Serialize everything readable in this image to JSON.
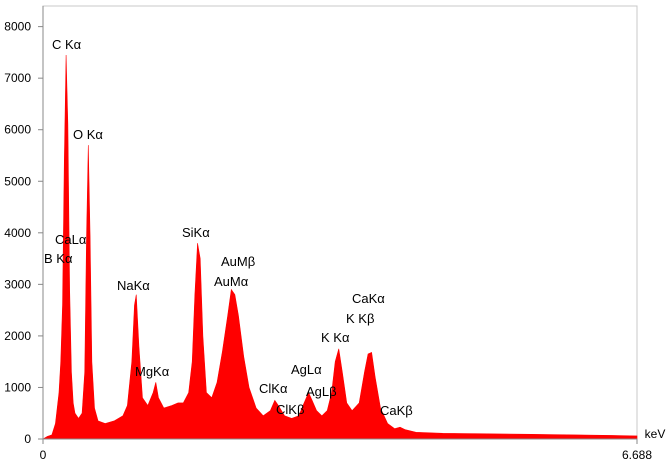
{
  "chart_data": {
    "type": "area",
    "color": "#ff0000",
    "x_unit": "keV",
    "xlim": [
      0,
      6.688
    ],
    "xticks": [
      0,
      6.688
    ],
    "ylim": [
      0,
      8400
    ],
    "yticks": [
      0,
      1000,
      2000,
      3000,
      4000,
      5000,
      6000,
      7000,
      8000
    ],
    "annotations": [
      "C Kα",
      "O Kα",
      "CaLα",
      "B Kα",
      "NaKα",
      "MgKα",
      "SiKα",
      "AuMβ",
      "AuMα",
      "ClKα",
      "ClKβ",
      "AgLα",
      "AgLβ",
      "K Kα",
      "CaKα",
      "K Kβ",
      "CaKβ"
    ],
    "x": [
      0.0,
      0.05,
      0.1,
      0.14,
      0.18,
      0.2,
      0.22,
      0.24,
      0.26,
      0.28,
      0.3,
      0.32,
      0.34,
      0.36,
      0.4,
      0.44,
      0.47,
      0.49,
      0.51,
      0.53,
      0.55,
      0.58,
      0.62,
      0.7,
      0.8,
      0.9,
      0.95,
      1.0,
      1.03,
      1.05,
      1.08,
      1.12,
      1.18,
      1.24,
      1.27,
      1.3,
      1.36,
      1.45,
      1.52,
      1.58,
      1.64,
      1.68,
      1.71,
      1.74,
      1.77,
      1.8,
      1.84,
      1.9,
      1.96,
      2.02,
      2.08,
      2.12,
      2.16,
      2.2,
      2.26,
      2.32,
      2.4,
      2.48,
      2.56,
      2.61,
      2.65,
      2.72,
      2.8,
      2.88,
      2.94,
      2.99,
      3.03,
      3.08,
      3.14,
      3.2,
      3.25,
      3.29,
      3.33,
      3.37,
      3.42,
      3.48,
      3.56,
      3.62,
      3.66,
      3.7,
      3.74,
      3.8,
      3.88,
      3.96,
      4.02,
      4.08,
      4.2,
      4.5,
      5.0,
      5.5,
      6.0,
      6.4,
      6.688
    ],
    "values": [
      0,
      50,
      80,
      300,
      900,
      1500,
      2600,
      5400,
      7450,
      6100,
      2900,
      1300,
      700,
      500,
      400,
      500,
      1300,
      3900,
      5700,
      3950,
      1500,
      600,
      350,
      300,
      350,
      450,
      650,
      1500,
      2600,
      2800,
      1800,
      800,
      650,
      900,
      1100,
      800,
      600,
      650,
      700,
      700,
      900,
      1500,
      2800,
      3800,
      3500,
      2000,
      900,
      800,
      1100,
      1700,
      2400,
      2900,
      2800,
      2400,
      1600,
      1000,
      600,
      450,
      550,
      750,
      650,
      450,
      400,
      450,
      700,
      900,
      750,
      550,
      450,
      550,
      900,
      1500,
      1750,
      1300,
      700,
      550,
      700,
      1300,
      1650,
      1680,
      1200,
      600,
      300,
      200,
      230,
      180,
      130,
      110,
      100,
      90,
      80,
      70,
      60
    ]
  }
}
